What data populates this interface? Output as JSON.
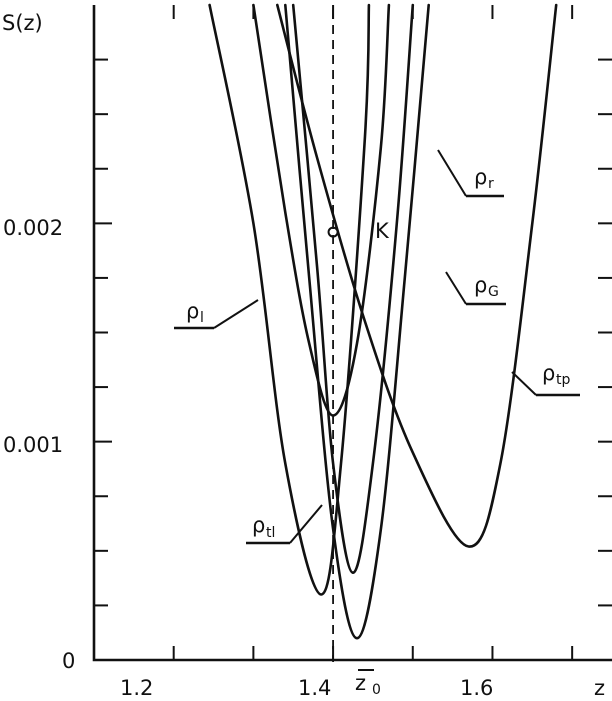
{
  "chart_data": {
    "type": "line",
    "xlabel": "z",
    "ylabel": "S(z)",
    "xlim": [
      1.1,
      1.75
    ],
    "ylim": [
      0,
      0.003
    ],
    "x_ticks": [
      "1.2",
      "1.4",
      "1.6"
    ],
    "y_ticks": [
      "0",
      "0.001",
      "0.002"
    ],
    "grid": false,
    "marker": {
      "label": "K",
      "x": 1.4,
      "y": 0.00196
    },
    "reference_line": {
      "label_main": "z",
      "label_sub": "0",
      "x": 1.4,
      "style": "dashed"
    },
    "series": [
      {
        "name_main": "ρ",
        "name_sub": "l",
        "min_x": 1.4,
        "min_y": 0.00112,
        "pts": [
          [
            1.3,
            0.003
          ],
          [
            1.34,
            0.00205
          ],
          [
            1.37,
            0.00145
          ],
          [
            1.4,
            0.00112
          ],
          [
            1.43,
            0.00145
          ],
          [
            1.46,
            0.00235
          ],
          [
            1.47,
            0.003
          ]
        ]
      },
      {
        "name_main": "ρ",
        "name_sub": "tl",
        "min_x": 1.385,
        "min_y": 0.0003,
        "pts": [
          [
            1.245,
            0.003
          ],
          [
            1.3,
            0.002
          ],
          [
            1.34,
            0.0009
          ],
          [
            1.385,
            0.0003
          ],
          [
            1.41,
            0.0009
          ],
          [
            1.44,
            0.0024
          ],
          [
            1.445,
            0.003
          ]
        ]
      },
      {
        "name_main": "ρ",
        "name_sub": "r",
        "min_x": 1.425,
        "min_y": 0.0004,
        "pts": [
          [
            1.35,
            0.003
          ],
          [
            1.38,
            0.0018
          ],
          [
            1.4,
            0.0009
          ],
          [
            1.425,
            0.0004
          ],
          [
            1.45,
            0.0009
          ],
          [
            1.48,
            0.002
          ],
          [
            1.5,
            0.003
          ]
        ]
      },
      {
        "name_main": "ρ",
        "name_sub": "G",
        "min_x": 1.43,
        "min_y": 0.0001,
        "pts": [
          [
            1.34,
            0.003
          ],
          [
            1.37,
            0.00175
          ],
          [
            1.4,
            0.0006
          ],
          [
            1.43,
            0.0001
          ],
          [
            1.46,
            0.0006
          ],
          [
            1.49,
            0.00175
          ],
          [
            1.52,
            0.003
          ]
        ]
      },
      {
        "name_main": "ρ",
        "name_sub": "tp",
        "min_x": 1.57,
        "min_y": 0.00052,
        "pts": [
          [
            1.33,
            0.003
          ],
          [
            1.38,
            0.0023
          ],
          [
            1.44,
            0.00155
          ],
          [
            1.5,
            0.00095
          ],
          [
            1.57,
            0.00052
          ],
          [
            1.61,
            0.0009
          ],
          [
            1.65,
            0.002
          ],
          [
            1.68,
            0.003
          ]
        ]
      }
    ]
  }
}
